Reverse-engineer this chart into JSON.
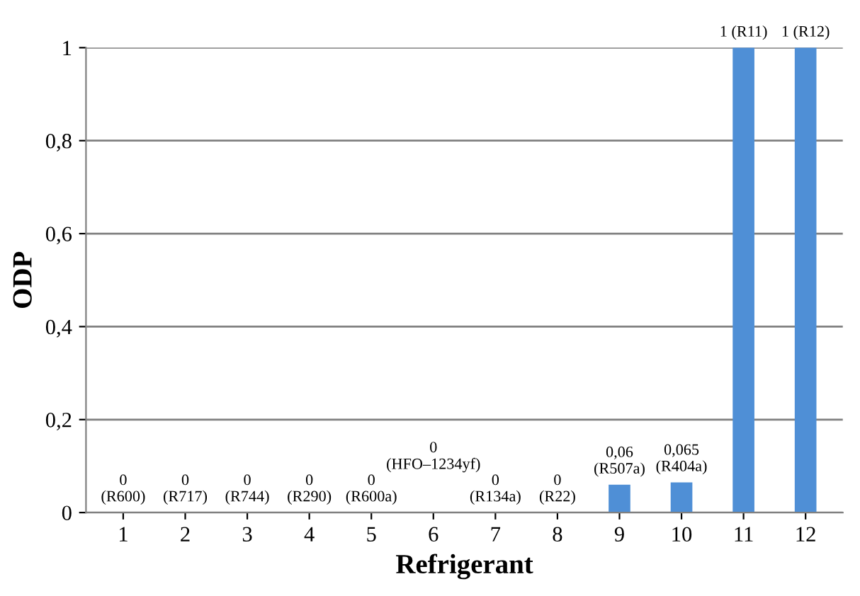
{
  "chart_data": {
    "type": "bar",
    "xlabel": "Refrigerant",
    "ylabel": "ODP",
    "categories": [
      "1",
      "2",
      "3",
      "4",
      "5",
      "6",
      "7",
      "8",
      "9",
      "10",
      "11",
      "12"
    ],
    "values": [
      0,
      0,
      0,
      0,
      0,
      0,
      0,
      0,
      0.06,
      0.065,
      1,
      1
    ],
    "value_labels": [
      "0\n(R600)",
      "0\n(R717)",
      "0\n(R744)",
      "0\n(R290)",
      "0\n(R600a)",
      "0\n(HFO–1234yf)",
      "0\n(R134a)",
      "0\n(R22)",
      "0,06\n(R507a)",
      "0,065\n(R404a)",
      "1 (R11)",
      "1 (R12)"
    ],
    "color": "#4f8fd6",
    "ylim": [
      0,
      1
    ],
    "yticks": [
      0,
      {
        "value": 0.2,
        "label": "0,2"
      },
      {
        "value": 0.4,
        "label": "0,4"
      },
      {
        "value": 0.6,
        "label": "0,6"
      },
      {
        "value": 0.8,
        "label": "0,8"
      },
      1
    ],
    "grid": "y"
  }
}
